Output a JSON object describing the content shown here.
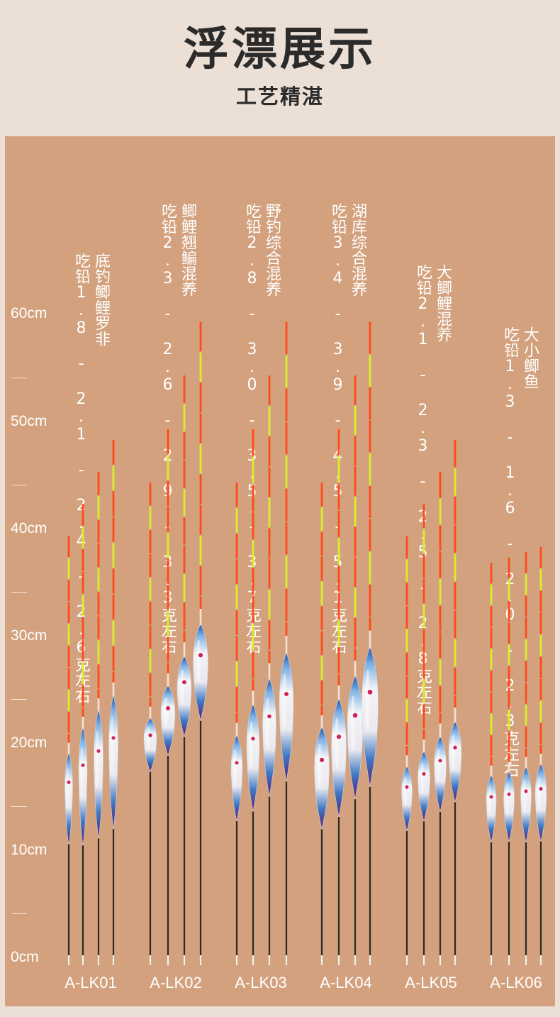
{
  "header": {
    "title": "浮漂展示",
    "subtitle": "工艺精湛"
  },
  "scale": {
    "labels": [
      "60cm",
      "50cm",
      "40cm",
      "30cm",
      "20cm",
      "10cm",
      "0cm"
    ]
  },
  "colors": {
    "panel": "#d3a17d",
    "tip_orange": "#ff4a1c",
    "tip_yellow": "#d8ef2a",
    "body_blue": "#2f6fb8",
    "body_purple": "#6b1f6e",
    "stem": "#2a2a2a"
  },
  "groups": [
    {
      "model": "A-LK01",
      "line1": "底钓鲫鲤罗非",
      "line2": "吃铅1.8 - 2.1 - 2.4 - 2.6克左右",
      "float_lengths_cm": [
        39.5,
        42.5,
        45.5,
        48.5
      ]
    },
    {
      "model": "A-LK02",
      "line1": "鲫鲤翘鳊混养",
      "line2": "吃铅2.3 - 2.6 - 2.9 - 3.3克左右",
      "float_lengths_cm": [
        44.5,
        49.5,
        54.5,
        59.5
      ]
    },
    {
      "model": "A-LK03",
      "line1": "野钓综合混养",
      "line2": "吃铅2.8 - 3.0 - 3.5 - 3.7克左右",
      "float_lengths_cm": [
        44.5,
        49.5,
        54.5,
        59.5
      ]
    },
    {
      "model": "A-LK04",
      "line1": "湖库综合混养",
      "line2": "吃铅3.4 - 3.9 - 4.5 - 5.1克左右",
      "float_lengths_cm": [
        44.5,
        49.5,
        54.5,
        59.5
      ]
    },
    {
      "model": "A-LK05",
      "line1": "大鲫鲤混养",
      "line2": "吃铅2.1 - 2.3 - 2.5 - 2.8克左右",
      "float_lengths_cm": [
        39.5,
        42.5,
        45.5,
        48.5
      ]
    },
    {
      "model": "A-LK06",
      "line1": "大小鲫鱼",
      "line2": "吃铅1.3 - 1.6 - 2.0 - 2.3克左右",
      "float_lengths_cm": [
        37.0,
        37.5,
        38.0,
        38.5
      ]
    }
  ]
}
